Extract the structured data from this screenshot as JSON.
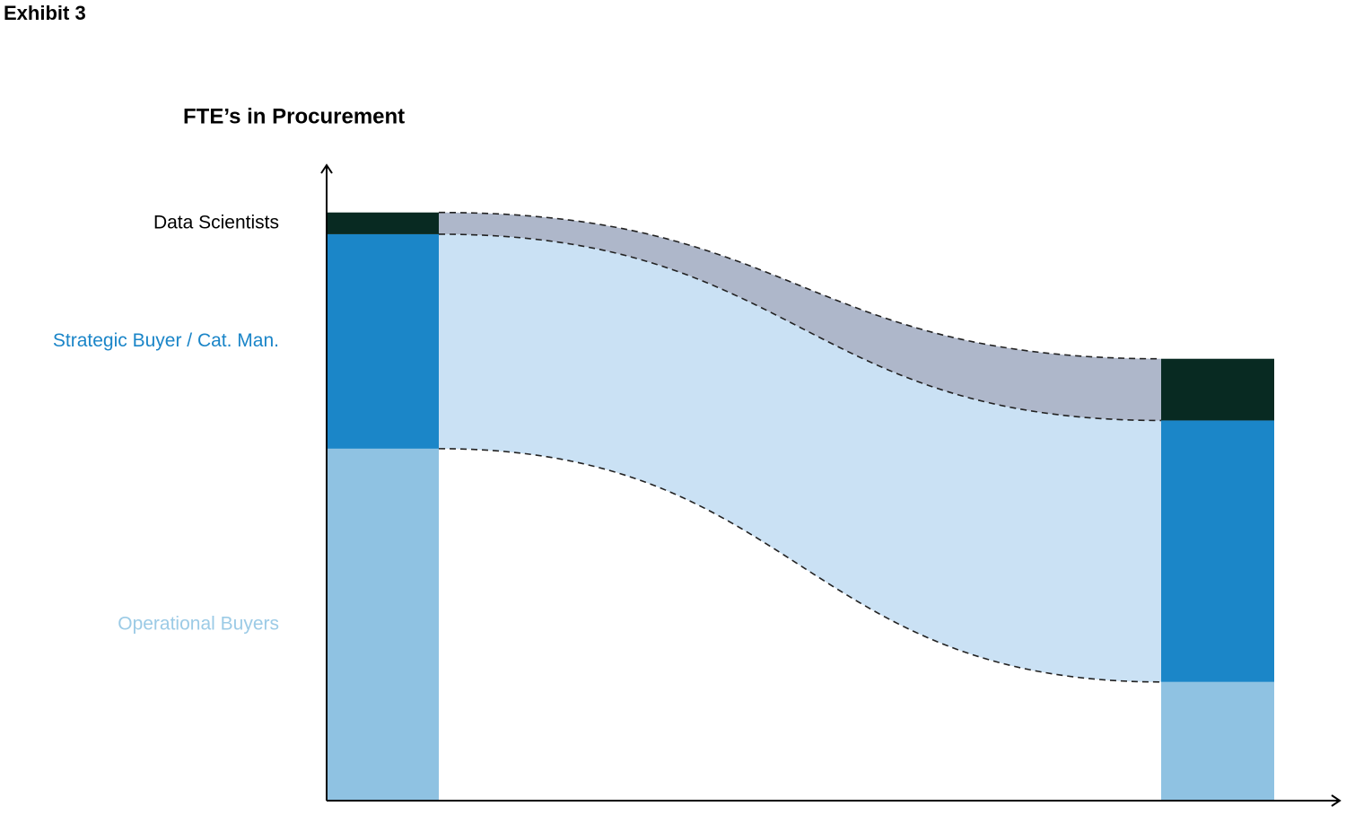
{
  "chart_data": {
    "type": "stacked_bar_flow",
    "header": "Exhibit 3",
    "title": "FTE’s in Procurement",
    "categories": [
      null,
      null
    ],
    "series": [
      {
        "name": "Operational Buyers",
        "color": "#8fc2e2",
        "label_color": "#9ccbe6",
        "values": [
          59.9,
          20.2
        ]
      },
      {
        "name": "Strategic Buyer / Cat. Man.",
        "color": "#1b86c8",
        "label_color": "#1a85c8",
        "values": [
          36.5,
          44.5
        ]
      },
      {
        "name": "Data Scientists",
        "color": "#082a22",
        "label_color": "#000000",
        "values": [
          3.7,
          10.5
        ]
      }
    ],
    "flow_colors": [
      "#ffffff",
      "#cae1f4",
      "#aeb7ca"
    ],
    "ylim": [
      0,
      108
    ]
  }
}
